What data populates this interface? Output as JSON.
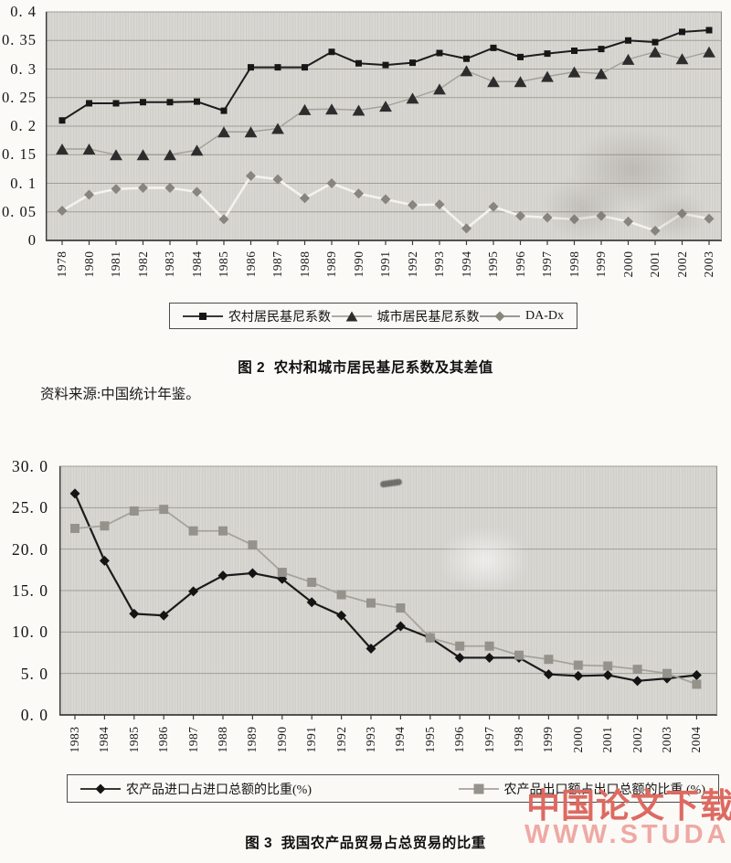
{
  "figure2": {
    "caption": "图 2  农村和城市居民基尼系数及其差值"
  },
  "source_note": "资料来源:中国统计年鉴。",
  "figure3": {
    "caption": "图 3  我国农产品贸易占总贸易的比重"
  },
  "watermark": {
    "line1": "中国论文下载",
    "line2": "WWW.STUDA.",
    "color1": "#dd6a62",
    "color2": "#efa9a4"
  },
  "colors": {
    "plot_bg": "#d7d6d1",
    "gridline": "#a29e96",
    "axis": "#3c3c3c",
    "paper": "#fbfaf7"
  },
  "chart_data": [
    {
      "type": "line",
      "title": "农村和城市居民基尼系数及其差值",
      "categories": [
        "1978",
        "1980",
        "1981",
        "1982",
        "1983",
        "1984",
        "1985",
        "1986",
        "1987",
        "1988",
        "1989",
        "1990",
        "1991",
        "1992",
        "1993",
        "1994",
        "1995",
        "1996",
        "1997",
        "1998",
        "1999",
        "2000",
        "2001",
        "2002",
        "2003"
      ],
      "y_ticks": [
        "0. 4",
        "0. 35",
        "0. 3",
        "0. 25",
        "0. 2",
        "0. 15",
        "0. 1",
        "0. 05",
        "0"
      ],
      "ylim": [
        0,
        0.4
      ],
      "grid": true,
      "legend_position": "bottom",
      "series": [
        {
          "name": "农村居民基尼系数",
          "marker": "square",
          "color": "#171717",
          "line_color": "#1d1d1d",
          "values": [
            0.21,
            0.24,
            0.24,
            0.242,
            0.242,
            0.243,
            0.227,
            0.303,
            0.303,
            0.303,
            0.33,
            0.31,
            0.307,
            0.311,
            0.328,
            0.318,
            0.337,
            0.321,
            0.327,
            0.332,
            0.335,
            0.35,
            0.347,
            0.365,
            0.368
          ]
        },
        {
          "name": "城市居民基尼系数",
          "marker": "triangle",
          "color": "#2d2d2d",
          "line_color": "#a3a099",
          "values": [
            0.16,
            0.16,
            0.15,
            0.15,
            0.15,
            0.158,
            0.19,
            0.19,
            0.196,
            0.229,
            0.23,
            0.228,
            0.235,
            0.249,
            0.265,
            0.297,
            0.278,
            0.278,
            0.287,
            0.295,
            0.292,
            0.317,
            0.33,
            0.318,
            0.33
          ]
        },
        {
          "name": "DA-Dx",
          "marker": "diamond",
          "color": "#88847e",
          "line_color": "#f4f3ef",
          "legend_line": "#8a8a8a",
          "values": [
            0.052,
            0.08,
            0.09,
            0.092,
            0.092,
            0.085,
            0.037,
            0.113,
            0.107,
            0.074,
            0.1,
            0.082,
            0.072,
            0.062,
            0.063,
            0.021,
            0.059,
            0.043,
            0.04,
            0.037,
            0.043,
            0.033,
            0.017,
            0.047,
            0.038
          ]
        }
      ]
    },
    {
      "type": "line",
      "title": "我国农产品贸易占总贸易的比重",
      "categories": [
        "1983",
        "1984",
        "1985",
        "1986",
        "1987",
        "1988",
        "1989",
        "1990",
        "1991",
        "1992",
        "1993",
        "1994",
        "1995",
        "1996",
        "1997",
        "1998",
        "1999",
        "2000",
        "2001",
        "2002",
        "2003",
        "2004"
      ],
      "y_ticks": [
        "30. 0",
        "25. 0",
        "20. 0",
        "15. 0",
        "10. 0",
        "5. 0",
        "0. 0"
      ],
      "ylim": [
        0,
        30
      ],
      "grid": true,
      "legend_position": "bottom",
      "series": [
        {
          "name": "农产品进口占进口总额的比重(%)",
          "marker": "diamond",
          "color": "#141414",
          "line_color": "#1b1b1b",
          "values": [
            26.7,
            18.6,
            12.2,
            12.0,
            14.9,
            16.8,
            17.1,
            16.4,
            13.6,
            12.0,
            8.0,
            10.7,
            9.3,
            6.9,
            6.9,
            6.9,
            4.9,
            4.7,
            4.8,
            4.1,
            4.4,
            4.8
          ]
        },
        {
          "name": "农产品出口额占出口总额的比重 (%)",
          "marker": "square",
          "color": "#95928c",
          "line_color": "#a6a39c",
          "values": [
            22.5,
            22.8,
            24.6,
            24.8,
            22.2,
            22.2,
            20.5,
            17.2,
            16.0,
            14.5,
            13.5,
            12.9,
            9.3,
            8.3,
            8.3,
            7.2,
            6.7,
            6.0,
            5.9,
            5.5,
            5.0,
            3.7
          ]
        }
      ]
    }
  ]
}
